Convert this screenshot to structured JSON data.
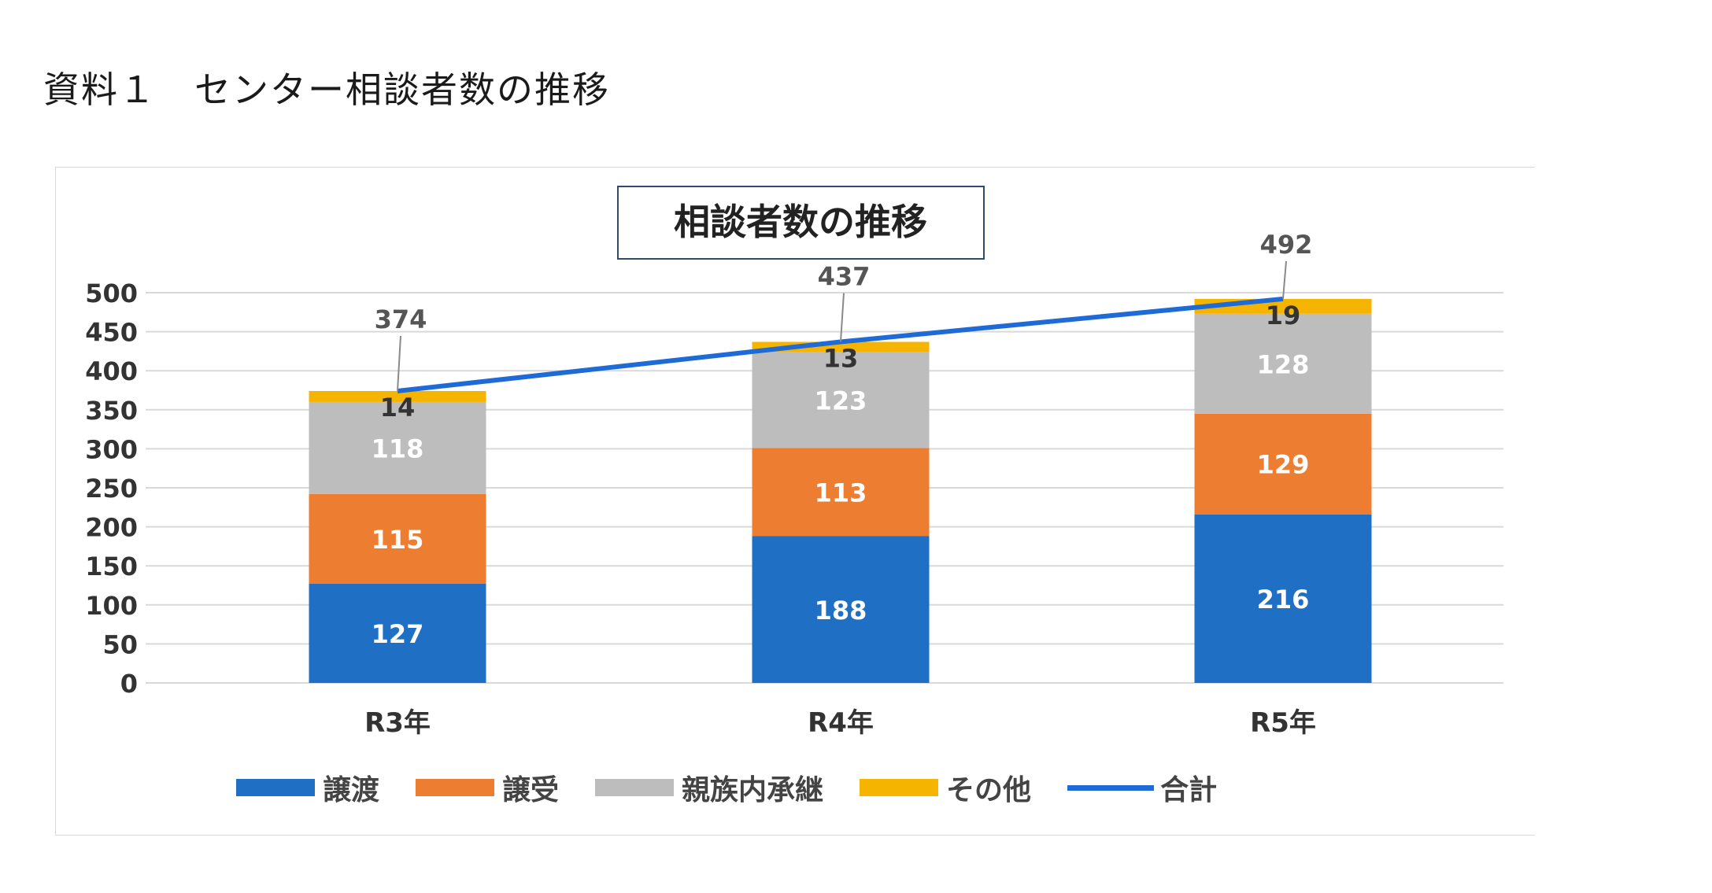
{
  "heading": "資料１　センター相談者数の推移",
  "chart_data": {
    "type": "bar",
    "stacked": true,
    "title": "相談者数の推移",
    "categories": [
      "R3年",
      "R4年",
      "R5年"
    ],
    "series": [
      {
        "name": "譲渡",
        "values": [
          127,
          188,
          216
        ],
        "color": "#1f6fc5"
      },
      {
        "name": "譲受",
        "values": [
          115,
          113,
          129
        ],
        "color": "#ed7d31"
      },
      {
        "name": "親族内承継",
        "values": [
          118,
          123,
          128
        ],
        "color": "#bdbdbd"
      },
      {
        "name": "その他",
        "values": [
          14,
          13,
          19
        ],
        "color": "#f4b400"
      }
    ],
    "line": {
      "name": "合計",
      "values": [
        374,
        437,
        492
      ],
      "color": "#1e6ad6"
    },
    "yticks": [
      "0",
      "50",
      "100",
      "150",
      "200",
      "250",
      "300",
      "350",
      "400",
      "450",
      "500"
    ],
    "ylim": [
      0,
      500
    ],
    "grid": true,
    "legend": "bottom"
  }
}
